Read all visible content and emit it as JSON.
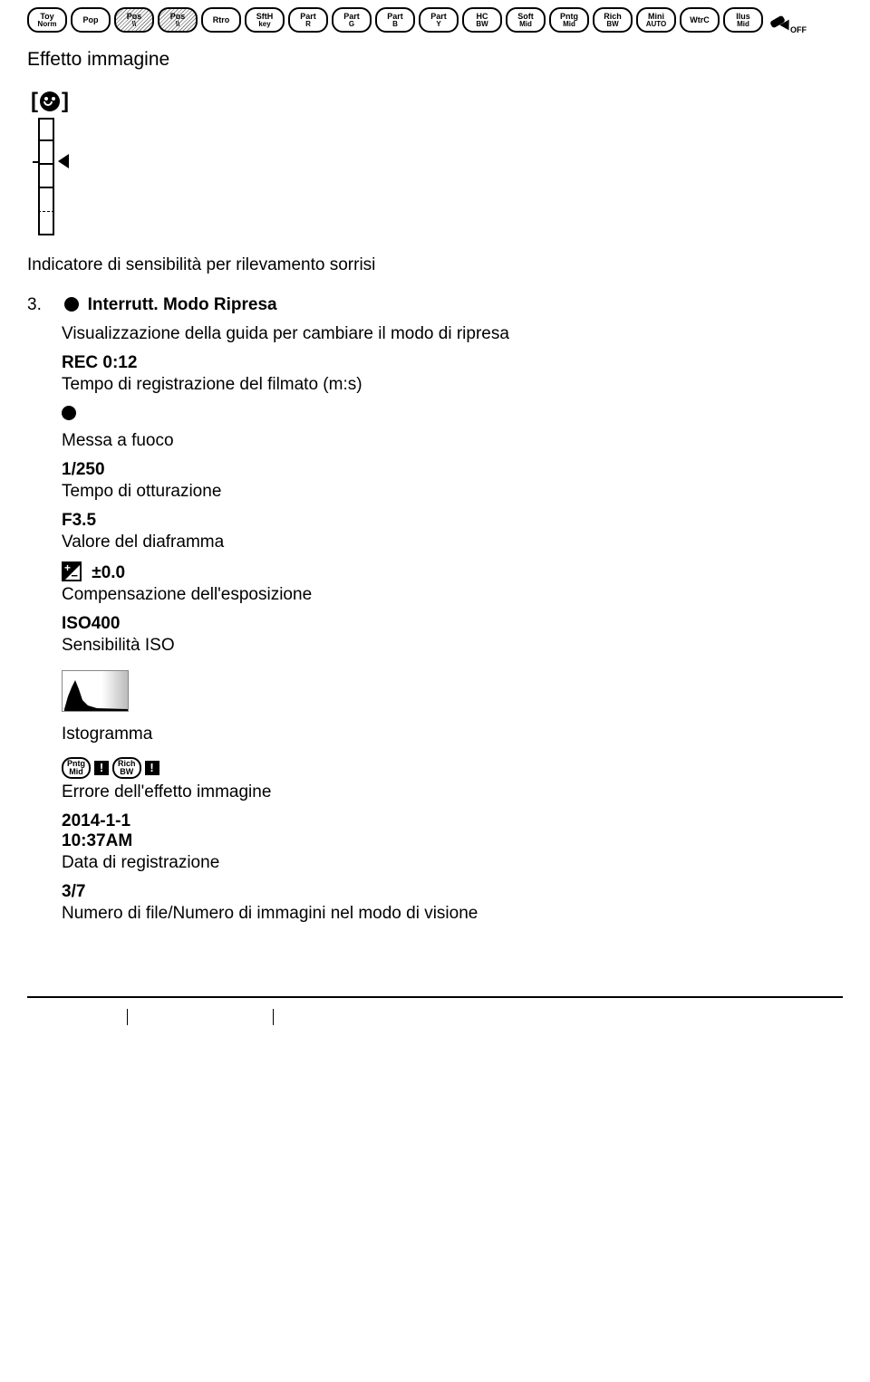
{
  "icon_row": [
    {
      "top": "Toy",
      "bot": "Norm",
      "hatch": false
    },
    {
      "top": "Pop",
      "bot": "",
      "hatch": false
    },
    {
      "top": "Pos",
      "bot": "\\\\",
      "hatch": true
    },
    {
      "top": "Pos",
      "bot": "\\\\",
      "hatch": true
    },
    {
      "top": "Rtro",
      "bot": "",
      "hatch": false
    },
    {
      "top": "SftH",
      "bot": "key",
      "hatch": false
    },
    {
      "top": "Part",
      "bot": "R",
      "hatch": false
    },
    {
      "top": "Part",
      "bot": "G",
      "hatch": false
    },
    {
      "top": "Part",
      "bot": "B",
      "hatch": false
    },
    {
      "top": "Part",
      "bot": "Y",
      "hatch": false
    },
    {
      "top": "HC",
      "bot": "BW",
      "hatch": false
    },
    {
      "top": "Soft",
      "bot": "Mid",
      "hatch": false
    },
    {
      "top": "Pntg",
      "bot": "Mid",
      "hatch": false
    },
    {
      "top": "Rich",
      "bot": "BW",
      "hatch": false
    },
    {
      "top": "Mini",
      "bot": "AUTO",
      "hatch": false
    },
    {
      "top": "WtrC",
      "bot": "",
      "hatch": false
    },
    {
      "top": "Ilus",
      "bot": "Mid",
      "hatch": false
    }
  ],
  "paint_off": "OFF",
  "effetto_immagine": "Effetto immagine",
  "smile_caption": "Indicatore di sensibilità per rilevamento sorrisi",
  "item3": {
    "num": "3.",
    "title": "Interrutt. Modo Ripresa",
    "desc": "Visualizzazione della guida per cambiare il modo di ripresa"
  },
  "rec": {
    "term": "REC 0:12",
    "desc": "Tempo di registrazione del filmato (m:s)"
  },
  "focus": {
    "desc": "Messa a fuoco"
  },
  "shutter": {
    "term": "1/250",
    "desc": "Tempo di otturazione"
  },
  "aperture": {
    "term": "F3.5",
    "desc": "Valore del diaframma"
  },
  "ev": {
    "val": "±0.0",
    "desc": "Compensazione dell'esposizione"
  },
  "iso": {
    "term": "ISO400",
    "desc": "Sensibilità ISO"
  },
  "histogram": "Istogramma",
  "error_badges": [
    {
      "top": "Pntg",
      "bot": "Mid"
    },
    {
      "top": "Rich",
      "bot": "BW"
    }
  ],
  "error_caption": "Errore dell'effetto immagine",
  "date": {
    "d": "2014-1-1",
    "t": "10:37AM",
    "desc": "Data di registrazione"
  },
  "file": {
    "term": "3/7",
    "desc": "Numero di file/Numero di immagini nel modo di visione"
  }
}
